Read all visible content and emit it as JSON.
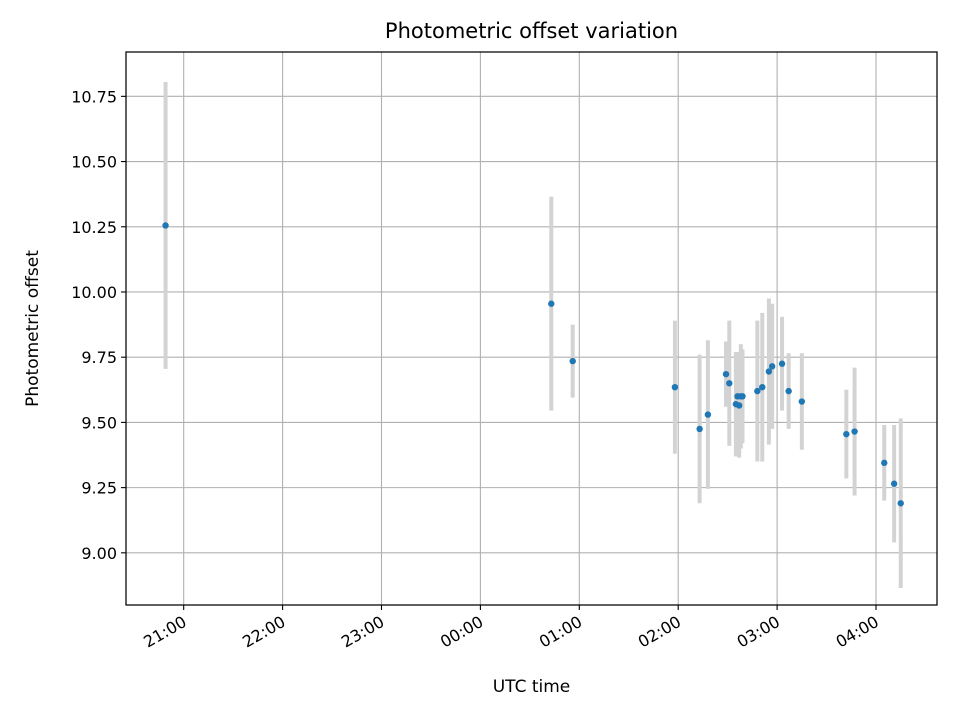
{
  "chart_data": {
    "type": "scatter",
    "title": "Photometric offset variation",
    "xlabel": "UTC time",
    "ylabel": "Photometric offset",
    "x_axis_kind": "time",
    "xlim": [
      "20:25",
      "04:37"
    ],
    "ylim": [
      8.8,
      10.92
    ],
    "x_ticks": [
      "21:00",
      "22:00",
      "23:00",
      "00:00",
      "01:00",
      "02:00",
      "03:00",
      "04:00"
    ],
    "y_ticks": [
      "9.00",
      "9.25",
      "9.50",
      "9.75",
      "10.00",
      "10.25",
      "10.50",
      "10.75"
    ],
    "grid": true,
    "point_color": "#1f77b4",
    "errorbar_color": "#d3d3d3",
    "series": [
      {
        "points": [
          {
            "x": "20:49",
            "y": 10.255,
            "err": 0.55
          },
          {
            "x": "00:43",
            "y": 9.955,
            "err": 0.41
          },
          {
            "x": "00:56",
            "y": 9.735,
            "err": 0.14
          },
          {
            "x": "01:58",
            "y": 9.635,
            "err": 0.255
          },
          {
            "x": "02:13",
            "y": 9.475,
            "err": 0.285
          },
          {
            "x": "02:18",
            "y": 9.53,
            "err": 0.285
          },
          {
            "x": "02:29",
            "y": 9.685,
            "err": 0.125
          },
          {
            "x": "02:31",
            "y": 9.65,
            "err": 0.24
          },
          {
            "x": "02:35",
            "y": 9.57,
            "err": 0.2
          },
          {
            "x": "02:36",
            "y": 9.6,
            "err": 0.17
          },
          {
            "x": "02:37",
            "y": 9.565,
            "err": 0.2
          },
          {
            "x": "02:38",
            "y": 9.6,
            "err": 0.2
          },
          {
            "x": "02:39",
            "y": 9.6,
            "err": 0.18
          },
          {
            "x": "02:48",
            "y": 9.62,
            "err": 0.27
          },
          {
            "x": "02:51",
            "y": 9.635,
            "err": 0.285
          },
          {
            "x": "02:55",
            "y": 9.695,
            "err": 0.28
          },
          {
            "x": "02:57",
            "y": 9.715,
            "err": 0.24
          },
          {
            "x": "03:03",
            "y": 9.725,
            "err": 0.18
          },
          {
            "x": "03:07",
            "y": 9.62,
            "err": 0.145
          },
          {
            "x": "03:15",
            "y": 9.58,
            "err": 0.185
          },
          {
            "x": "03:42",
            "y": 9.455,
            "err": 0.17
          },
          {
            "x": "03:47",
            "y": 9.465,
            "err": 0.245
          },
          {
            "x": "04:05",
            "y": 9.345,
            "err": 0.145
          },
          {
            "x": "04:11",
            "y": 9.265,
            "err": 0.225
          },
          {
            "x": "04:15",
            "y": 9.19,
            "err": 0.325
          }
        ]
      }
    ]
  }
}
